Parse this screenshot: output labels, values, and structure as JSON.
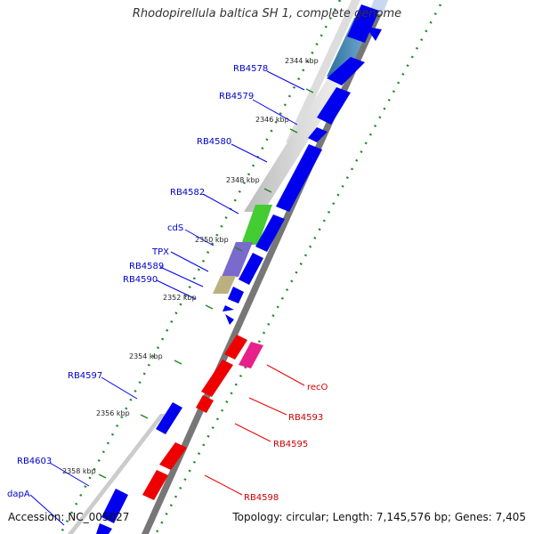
{
  "title": "Rhodopirellula baltica SH 1, complete genome",
  "footer": {
    "accession": "Accession: NC_005027",
    "topology": "Topology: circular; Length: 7,145,576 bp; Genes: 7,405"
  },
  "colors": {
    "forward_gene": "#0000ee",
    "reverse_gene": "#ee0000",
    "forward_label": "#0000cc",
    "reverse_label": "#cc0000",
    "backbone": "#777777",
    "tick": "#228822"
  },
  "ticks": [
    {
      "label": "2344 kbp"
    },
    {
      "label": "2346 kbp"
    },
    {
      "label": "2348 kbp"
    },
    {
      "label": "2350 kbp"
    },
    {
      "label": "2352 kbp"
    },
    {
      "label": "2354 kbp"
    },
    {
      "label": "2356 kbp"
    },
    {
      "label": "2358 kbp"
    }
  ],
  "forward_labels": [
    "RB4578",
    "RB4579",
    "RB4580",
    "RB4582",
    "cdS",
    "TPX",
    "RB4589",
    "RB4590",
    "RB4597",
    "RB4603",
    "dapA"
  ],
  "reverse_labels": [
    "recO",
    "RB4593",
    "RB4595",
    "RB4598"
  ]
}
